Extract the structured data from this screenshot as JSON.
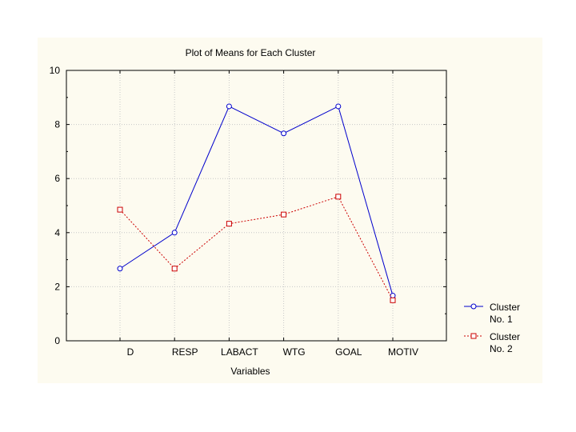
{
  "chart_data": {
    "type": "line",
    "title": "Plot of Means for Each Cluster",
    "xlabel": "Variables",
    "ylabel": "",
    "categories": [
      "D",
      "RESP",
      "LABACT",
      "WTG",
      "GOAL",
      "MOTIV"
    ],
    "ylim": [
      0,
      10
    ],
    "yticks": [
      0,
      2,
      4,
      6,
      8,
      10
    ],
    "grid": true,
    "legend_position": "right",
    "series": [
      {
        "name_lines": [
          "Cluster",
          "No. 1"
        ],
        "values": [
          2.67,
          4.0,
          8.67,
          7.67,
          8.67,
          1.67
        ],
        "color": "#0000cc",
        "line_style": "solid",
        "marker": "circle"
      },
      {
        "name_lines": [
          "Cluster",
          "No. 2"
        ],
        "values": [
          4.85,
          2.67,
          4.33,
          4.67,
          5.33,
          1.5
        ],
        "color": "#cc0000",
        "line_style": "dotted",
        "marker": "square"
      }
    ]
  }
}
